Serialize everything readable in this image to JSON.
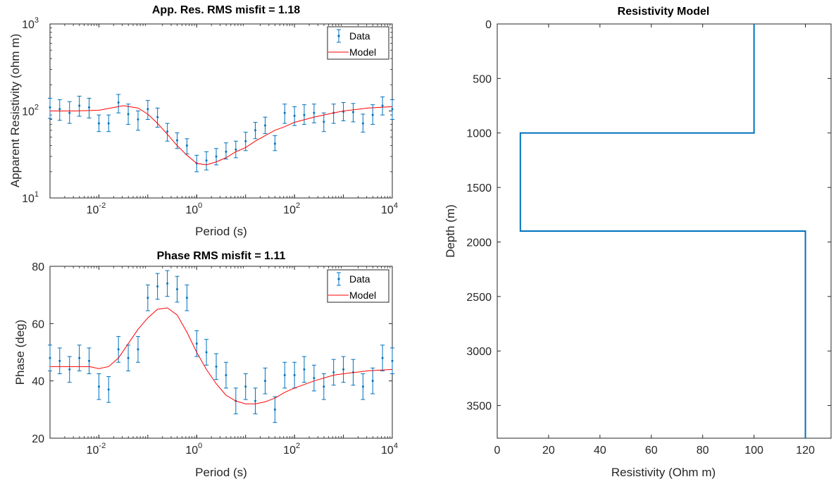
{
  "colors": {
    "data": "#0072BD",
    "model": "#FF0000",
    "axis": "#262626"
  },
  "chart_data": [
    {
      "type": "scatter",
      "title": "App. Res. RMS misfit = 1.18",
      "xlabel": "Period (s)",
      "ylabel": "Apparent Resistivity (ohm m)",
      "xscale": "log",
      "yscale": "log",
      "xlim": [
        0.001,
        10000
      ],
      "ylim": [
        10,
        1000
      ],
      "xticks": [
        0.01,
        1,
        100,
        10000
      ],
      "xtick_labels": [
        {
          "base": "10",
          "exp": "-2"
        },
        {
          "base": "10",
          "exp": "0"
        },
        {
          "base": "10",
          "exp": "2"
        },
        {
          "base": "10",
          "exp": "4"
        }
      ],
      "yticks": [
        10,
        100,
        1000
      ],
      "ytick_labels": [
        {
          "base": "10",
          "exp": "1"
        },
        {
          "base": "10",
          "exp": "2"
        },
        {
          "base": "10",
          "exp": "3"
        }
      ],
      "legend": {
        "position": "top-right",
        "entries": [
          "Data",
          "Model"
        ]
      },
      "series": [
        {
          "name": "Data",
          "kind": "errorbar",
          "x": [
            0.001,
            0.00158,
            0.00251,
            0.00398,
            0.00631,
            0.01,
            0.0158,
            0.0251,
            0.0398,
            0.0631,
            0.1,
            0.158,
            0.251,
            0.398,
            0.631,
            1,
            1.58,
            2.51,
            3.98,
            6.31,
            10,
            15.8,
            25.1,
            39.8,
            63.1,
            100,
            158,
            251,
            398,
            631,
            1000,
            1585,
            2512,
            3981,
            6310,
            10000
          ],
          "y": [
            110,
            105,
            95,
            115,
            110,
            72,
            72,
            125,
            92,
            80,
            105,
            85,
            58,
            46,
            40,
            25,
            27,
            30,
            34,
            36,
            45,
            60,
            68,
            42,
            95,
            88,
            90,
            95,
            75,
            95,
            98,
            97,
            72,
            90,
            115,
            105
          ],
          "yerr_low": [
            82,
            78,
            72,
            87,
            83,
            58,
            58,
            95,
            70,
            60,
            80,
            65,
            45,
            37,
            32,
            20,
            21,
            24,
            28,
            29,
            35,
            48,
            55,
            35,
            72,
            68,
            70,
            73,
            58,
            72,
            77,
            75,
            57,
            70,
            90,
            80
          ],
          "yerr_high": [
            140,
            135,
            128,
            148,
            140,
            90,
            90,
            155,
            120,
            100,
            132,
            108,
            72,
            56,
            48,
            31,
            34,
            37,
            43,
            45,
            57,
            74,
            85,
            52,
            120,
            112,
            118,
            120,
            95,
            120,
            125,
            122,
            92,
            118,
            145,
            135
          ]
        },
        {
          "name": "Model",
          "kind": "line",
          "x": [
            0.001,
            0.00316,
            0.01,
            0.0316,
            0.0631,
            0.1,
            0.158,
            0.251,
            0.398,
            0.631,
            1,
            1.58,
            2.51,
            3.98,
            6.31,
            10,
            15.8,
            25.1,
            39.8,
            63.1,
            100,
            251,
            631,
            1000,
            3162,
            10000
          ],
          "y": [
            100,
            100,
            102,
            115,
            108,
            92,
            72,
            54,
            40,
            31,
            25,
            24,
            26,
            29,
            34,
            38,
            45,
            52,
            60,
            66,
            74,
            85,
            95,
            100,
            108,
            112
          ]
        }
      ]
    },
    {
      "type": "scatter",
      "title": "Phase RMS misfit = 1.11",
      "xlabel": "Period (s)",
      "ylabel": "Phase (deg)",
      "xscale": "log",
      "xlim": [
        0.001,
        10000
      ],
      "ylim": [
        20,
        80
      ],
      "xticks": [
        0.01,
        1,
        100,
        10000
      ],
      "xtick_labels": [
        {
          "base": "10",
          "exp": "-2"
        },
        {
          "base": "10",
          "exp": "0"
        },
        {
          "base": "10",
          "exp": "2"
        },
        {
          "base": "10",
          "exp": "4"
        }
      ],
      "yticks": [
        20,
        40,
        60,
        80
      ],
      "ytick_labels": [
        "20",
        "40",
        "60",
        "80"
      ],
      "legend": {
        "position": "top-right",
        "entries": [
          "Data",
          "Model"
        ]
      },
      "series": [
        {
          "name": "Data",
          "kind": "errorbar",
          "x": [
            0.001,
            0.00158,
            0.00251,
            0.00398,
            0.00631,
            0.01,
            0.0158,
            0.0251,
            0.0398,
            0.0631,
            0.1,
            0.158,
            0.251,
            0.398,
            0.631,
            1,
            1.58,
            2.51,
            3.98,
            6.31,
            10,
            15.8,
            25.1,
            39.8,
            63.1,
            100,
            158,
            251,
            398,
            631,
            1000,
            1585,
            2512,
            3981,
            6310,
            10000
          ],
          "y": [
            48,
            47,
            44,
            48,
            47,
            38,
            37,
            51,
            48,
            51,
            69,
            73,
            74,
            72,
            69,
            53,
            50,
            45,
            42,
            33,
            38,
            33,
            40,
            30,
            42,
            42,
            44,
            41,
            38,
            43,
            44,
            43,
            38,
            40,
            48,
            47
          ],
          "err": [
            4.5,
            4.5,
            4.5,
            4.5,
            4.5,
            4.5,
            4.5,
            4.5,
            4.5,
            4.5,
            4.5,
            4.5,
            4.5,
            4.5,
            4.5,
            4.5,
            4.5,
            4.5,
            4.5,
            4.5,
            4.5,
            4.5,
            4.5,
            4.5,
            4.5,
            4.5,
            4.5,
            4.5,
            4.5,
            4.5,
            4.5,
            4.5,
            4.5,
            4.5,
            4.5,
            4.5
          ]
        },
        {
          "name": "Model",
          "kind": "line",
          "x": [
            0.001,
            0.00316,
            0.00631,
            0.01,
            0.0158,
            0.0251,
            0.0398,
            0.0631,
            0.1,
            0.158,
            0.251,
            0.398,
            0.631,
            1,
            1.58,
            2.51,
            3.98,
            6.31,
            10,
            15.8,
            25.1,
            39.8,
            63.1,
            100,
            251,
            631,
            1000,
            3162,
            10000
          ],
          "y": [
            45,
            45,
            45,
            44.3,
            45,
            48,
            53,
            58,
            62,
            65,
            65.5,
            63,
            57,
            50,
            44,
            39,
            35,
            33,
            32,
            32,
            32.7,
            34,
            36,
            37.5,
            40,
            42,
            42.5,
            43.5,
            44
          ]
        }
      ]
    },
    {
      "type": "line",
      "title": "Resistivity Model",
      "xlabel": "Resistivity (Ohm m)",
      "ylabel": "Depth (m)",
      "xlim": [
        0,
        130
      ],
      "ylim": [
        3800,
        0
      ],
      "xticks": [
        0,
        20,
        40,
        60,
        80,
        100,
        120
      ],
      "yticks": [
        0,
        500,
        1000,
        1500,
        2000,
        2500,
        3000,
        3500
      ],
      "series": [
        {
          "name": "Model",
          "x": [
            100,
            100,
            9,
            9,
            120,
            120
          ],
          "y": [
            0,
            1000,
            1000,
            1900,
            1900,
            3800
          ]
        }
      ]
    }
  ]
}
